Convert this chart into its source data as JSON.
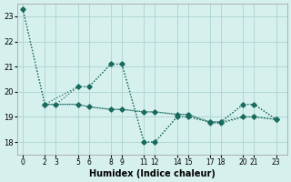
{
  "xlabel": "Humidex (Indice chaleur)",
  "background_color": "#d6f0ee",
  "grid_color": "#b0d8d4",
  "line_color": "#1a6b5e",
  "ylim": [
    17.5,
    23.5
  ],
  "yticks": [
    18,
    19,
    20,
    21,
    22,
    23
  ],
  "x_ticks": [
    0,
    2,
    3,
    5,
    6,
    8,
    9,
    11,
    12,
    14,
    15,
    17,
    18,
    20,
    21,
    23
  ],
  "x_tick_labels": [
    "0",
    "2",
    "3",
    "5",
    "6",
    "8",
    "9",
    "11",
    "12",
    "14",
    "15",
    "17",
    "18",
    "20",
    "21",
    "23"
  ],
  "xlim": [
    -0.5,
    24
  ],
  "line1_x": [
    0,
    2,
    5,
    6,
    8,
    9,
    11,
    12,
    14,
    15,
    17,
    18,
    20,
    21,
    23
  ],
  "line1_y": [
    23.3,
    19.5,
    20.2,
    20.2,
    21.1,
    21.1,
    18.0,
    18.0,
    19.0,
    19.0,
    18.8,
    18.8,
    19.5,
    19.5,
    18.9
  ],
  "line2_x": [
    0,
    2,
    5,
    6,
    8,
    9,
    11,
    12,
    14,
    15,
    17,
    18,
    20,
    21,
    23
  ],
  "line2_y": [
    23.3,
    19.5,
    19.5,
    19.4,
    19.3,
    19.3,
    19.2,
    19.2,
    19.1,
    19.1,
    18.8,
    18.8,
    19.0,
    19.0,
    18.9
  ],
  "line3_x": [
    2,
    3,
    5,
    6,
    8,
    9,
    11,
    12,
    14,
    15,
    17,
    18,
    20,
    21,
    23
  ],
  "line3_y": [
    19.5,
    19.5,
    20.2,
    20.2,
    21.1,
    21.1,
    18.0,
    18.0,
    19.0,
    19.0,
    18.8,
    18.8,
    19.5,
    19.5,
    18.9
  ],
  "line4_x": [
    2,
    3,
    5,
    6,
    8,
    9,
    11,
    12,
    14,
    15,
    17,
    18,
    20,
    21,
    23
  ],
  "line4_y": [
    19.5,
    19.5,
    19.5,
    19.4,
    19.3,
    19.3,
    19.2,
    19.2,
    19.1,
    19.1,
    18.75,
    18.75,
    19.0,
    19.0,
    18.9
  ]
}
